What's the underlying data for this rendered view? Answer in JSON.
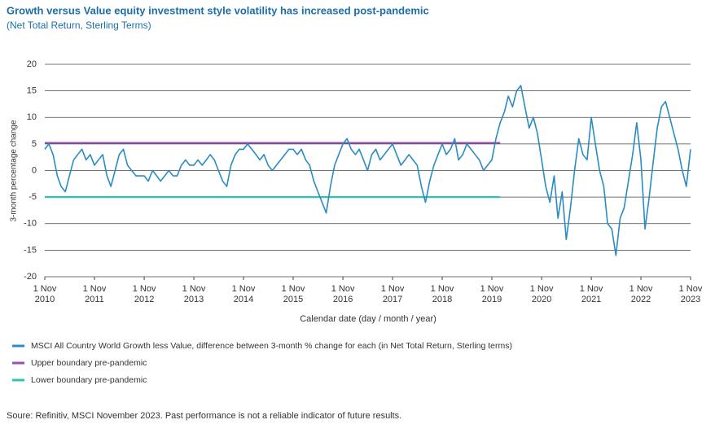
{
  "chart_data": {
    "type": "line",
    "title": "Growth versus Value equity investment style volatility has increased post-pandemic",
    "subtitle": "(Net Total Return, Sterling Terms)",
    "y_label": "3-month percentage change",
    "x_label": "Calendar date (day / month / year)",
    "source": "Soure: Refinitiv, MSCI November 2023. Past performance is not a reliable indicator of future results.",
    "ylim": [
      -20,
      20
    ],
    "yticks": [
      -20,
      -15,
      -10,
      -5,
      0,
      5,
      10,
      15,
      20
    ],
    "xlim": [
      "2010-11-01",
      "2023-11-01"
    ],
    "xticks": [
      {
        "value": "2010-11-01",
        "label": "1 Nov 2010"
      },
      {
        "value": "2011-11-01",
        "label": "1 Nov 2011"
      },
      {
        "value": "2012-11-01",
        "label": "1 Nov 2012"
      },
      {
        "value": "2013-11-01",
        "label": "1 Nov 2013"
      },
      {
        "value": "2014-11-01",
        "label": "1 Nov 2014"
      },
      {
        "value": "2015-11-01",
        "label": "1 Nov 2015"
      },
      {
        "value": "2016-11-01",
        "label": "1 Nov 2016"
      },
      {
        "value": "2017-11-01",
        "label": "1 Nov 2017"
      },
      {
        "value": "2018-11-01",
        "label": "1 Nov 2018"
      },
      {
        "value": "2019-11-01",
        "label": "1 Nov 2019"
      },
      {
        "value": "2020-11-01",
        "label": "1 Nov 2020"
      },
      {
        "value": "2021-11-01",
        "label": "1 Nov 2021"
      },
      {
        "value": "2022-11-01",
        "label": "1 Nov 2022"
      },
      {
        "value": "2023-11-01",
        "label": "1 Nov 2023"
      }
    ],
    "grid": true,
    "series": [
      {
        "name": "MSCI All Country World Growth less Value, difference between 3-month % change for each (in Net Total Return, Sterling terms)",
        "color": "#2a8cc0",
        "x": [
          "2010-11-01",
          "2010-12-01",
          "2011-01-01",
          "2011-02-01",
          "2011-03-01",
          "2011-04-01",
          "2011-05-01",
          "2011-06-01",
          "2011-07-01",
          "2011-08-01",
          "2011-09-01",
          "2011-10-01",
          "2011-11-01",
          "2011-12-01",
          "2012-01-01",
          "2012-02-01",
          "2012-03-01",
          "2012-04-01",
          "2012-05-01",
          "2012-06-01",
          "2012-07-01",
          "2012-08-01",
          "2012-09-01",
          "2012-10-01",
          "2012-11-01",
          "2012-12-01",
          "2013-01-01",
          "2013-02-01",
          "2013-03-01",
          "2013-04-01",
          "2013-05-01",
          "2013-06-01",
          "2013-07-01",
          "2013-08-01",
          "2013-09-01",
          "2013-10-01",
          "2013-11-01",
          "2013-12-01",
          "2014-01-01",
          "2014-02-01",
          "2014-03-01",
          "2014-04-01",
          "2014-05-01",
          "2014-06-01",
          "2014-07-01",
          "2014-08-01",
          "2014-09-01",
          "2014-10-01",
          "2014-11-01",
          "2014-12-01",
          "2015-01-01",
          "2015-02-01",
          "2015-03-01",
          "2015-04-01",
          "2015-05-01",
          "2015-06-01",
          "2015-07-01",
          "2015-08-01",
          "2015-09-01",
          "2015-10-01",
          "2015-11-01",
          "2015-12-01",
          "2016-01-01",
          "2016-02-01",
          "2016-03-01",
          "2016-04-01",
          "2016-05-01",
          "2016-06-01",
          "2016-07-01",
          "2016-08-01",
          "2016-09-01",
          "2016-10-01",
          "2016-11-01",
          "2016-12-01",
          "2017-01-01",
          "2017-02-01",
          "2017-03-01",
          "2017-04-01",
          "2017-05-01",
          "2017-06-01",
          "2017-07-01",
          "2017-08-01",
          "2017-09-01",
          "2017-10-01",
          "2017-11-01",
          "2017-12-01",
          "2018-01-01",
          "2018-02-01",
          "2018-03-01",
          "2018-04-01",
          "2018-05-01",
          "2018-06-01",
          "2018-07-01",
          "2018-08-01",
          "2018-09-01",
          "2018-10-01",
          "2018-11-01",
          "2018-12-01",
          "2019-01-01",
          "2019-02-01",
          "2019-03-01",
          "2019-04-01",
          "2019-05-01",
          "2019-06-01",
          "2019-07-01",
          "2019-08-01",
          "2019-09-01",
          "2019-10-01",
          "2019-11-01",
          "2019-12-01",
          "2020-01-01",
          "2020-02-01",
          "2020-03-01",
          "2020-04-01",
          "2020-05-01",
          "2020-06-01",
          "2020-07-01",
          "2020-08-01",
          "2020-09-01",
          "2020-10-01",
          "2020-11-01",
          "2020-12-01",
          "2021-01-01",
          "2021-02-01",
          "2021-03-01",
          "2021-04-01",
          "2021-05-01",
          "2021-06-01",
          "2021-07-01",
          "2021-08-01",
          "2021-09-01",
          "2021-10-01",
          "2021-11-01",
          "2021-12-01",
          "2022-01-01",
          "2022-02-01",
          "2022-03-01",
          "2022-04-01",
          "2022-05-01",
          "2022-06-01",
          "2022-07-01",
          "2022-08-01",
          "2022-09-01",
          "2022-10-01",
          "2022-11-01",
          "2022-12-01",
          "2023-01-01",
          "2023-02-01",
          "2023-03-01",
          "2023-04-01",
          "2023-05-01",
          "2023-06-01",
          "2023-07-01",
          "2023-08-01",
          "2023-09-01",
          "2023-10-01",
          "2023-11-01"
        ],
        "values": [
          4,
          5,
          3,
          -1,
          -3,
          -4,
          -1,
          2,
          3,
          4,
          2,
          3,
          1,
          2,
          3,
          -1,
          -3,
          0,
          3,
          4,
          1,
          0,
          -1,
          -1,
          -1,
          -2,
          0,
          -1,
          -2,
          -1,
          0,
          -1,
          -1,
          1,
          2,
          1,
          1,
          2,
          1,
          2,
          3,
          2,
          0,
          -2,
          -3,
          1,
          3,
          4,
          4,
          5,
          4,
          3,
          2,
          3,
          1,
          0,
          1,
          2,
          3,
          4,
          4,
          3,
          4,
          2,
          1,
          -2,
          -4,
          -6,
          -8,
          -3,
          1,
          3,
          5,
          6,
          4,
          3,
          4,
          2,
          0,
          3,
          4,
          2,
          3,
          4,
          5,
          3,
          1,
          2,
          3,
          2,
          1,
          -3,
          -6,
          -2,
          1,
          3,
          5,
          3,
          4,
          6,
          2,
          3,
          5,
          4,
          3,
          2,
          0,
          1,
          2,
          6,
          9,
          11,
          14,
          12,
          15,
          16,
          12,
          8,
          10,
          7,
          2,
          -3,
          -6,
          -1,
          -9,
          -4,
          -13,
          -7,
          0,
          6,
          3,
          2,
          10,
          5,
          0,
          -3,
          -10,
          -11,
          -16,
          -9,
          -7,
          -2,
          3,
          9,
          2,
          -11,
          -5,
          2,
          8,
          12,
          13,
          10,
          7,
          4,
          0,
          -3,
          4
        ]
      },
      {
        "name": "Upper boundary pre-pandemic",
        "color": "#9b4fb0",
        "x": [
          "2010-11-01",
          "2020-01-01"
        ],
        "values": [
          5.2,
          5.2
        ]
      },
      {
        "name": "Lower boundary pre-pandemic",
        "color": "#2ec4b4",
        "x": [
          "2010-11-01",
          "2020-01-01"
        ],
        "values": [
          -5,
          -5
        ]
      }
    ]
  }
}
